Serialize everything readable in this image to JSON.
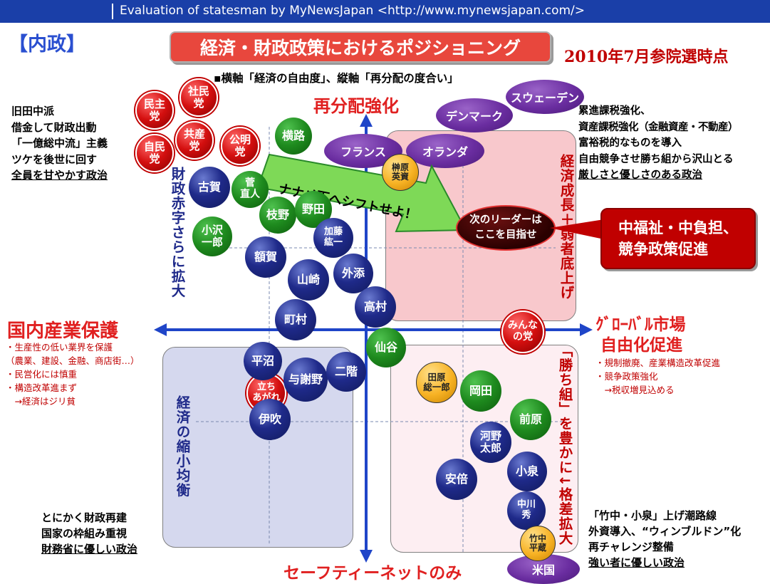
{
  "header": {
    "title": "Evaluation of statesman   by MyNewsJapan <http://www.mynewsjapan.com/>"
  },
  "section_label": "【内政】",
  "main_title": "経済・財政政策におけるポジショニング",
  "date_label": "2010年7月参院選時点",
  "axis_note": "▪横軸「経済の自由度」、縦軸「再分配の度合い」",
  "axes": {
    "top": "再分配強化",
    "bottom": "セーフティーネットのみ",
    "left": "国内産業保護",
    "right_line1": "ｸﾞﾛｰﾊﾞﾙ市場",
    "right_line2": "自由化促進"
  },
  "top_left_note": [
    "旧田中派",
    "借金して財政出動",
    "「一億総中流」主義",
    "ツケを後世に回す",
    "全員を甘やかす政治"
  ],
  "top_right_note": [
    "累進課税強化、",
    "資産課税強化（金融資産・不動産）",
    "富裕税的なものを導入",
    "自由競争させ勝ち組から沢山とる",
    "厳しさと優しさのある政治"
  ],
  "left_mid_note": [
    "・生産性の低い業界を保護",
    "（農業、建設、金融、商店街…）",
    "・民営化には慎重",
    "・構造改革進まず",
    "　→経済はジリ貧"
  ],
  "right_mid_note": [
    "・規制撤廃、産業構造改革促進",
    "・競争政策強化",
    "　→税収増見込める"
  ],
  "bottom_left_note": [
    "とにかく財政再建",
    "国家の枠組み重視",
    "財務省に優しい政治"
  ],
  "bottom_right_note": [
    "「竹中・小泉」上げ潮路線",
    "外資導入、“ウィンブルドン”化",
    "再チャレンジ整備",
    "強い者に優しい政治"
  ],
  "vertical_labels": {
    "deficit": "財政赤字さらに拡大",
    "growth": "経済成長＋弱者底上げ",
    "shrink": "経済の縮小均衡",
    "winners": "「勝ち組」を豊かに↓格差拡大"
  },
  "arrow_text": "ナナメ下へシフトせよ！",
  "target_label": "次のリーダーは\nここを目指せ",
  "target_callout": "中福祉・中負担、\n競争政策促進",
  "countries": [
    "スウェーデン",
    "デンマーク",
    "フランス",
    "オランダ",
    "米国"
  ],
  "parties": [
    "民主\n党",
    "社民\n党",
    "自民\n党",
    "共産\n党",
    "公明\n党",
    "立ち\nあがれ",
    "みんな\nの党"
  ],
  "politicians": {
    "yokomichi": "横路",
    "koga": "古賀",
    "kan": "菅\n直人",
    "edano": "枝野",
    "noda": "野田",
    "ozawa": "小沢\n一郎",
    "kato": "加藤\n紘一",
    "nukaga": "額賀",
    "yamasaki": "山崎",
    "sozoe": "外添",
    "takamura": "高村",
    "machimura": "町村",
    "sengoku": "仙谷",
    "sakakibara": "榊原\n英資",
    "hiranuma": "平沼",
    "yosano": "与謝野",
    "nikai": "二階",
    "ibuki": "伊吹",
    "tahara": "田原\n総一郎",
    "okada": "岡田",
    "maehara": "前原",
    "kono": "河野\n太郎",
    "abe": "安倍",
    "koizumi": "小泉",
    "nakagawa": "中川\n秀",
    "takenaka": "竹中\n平蔵"
  },
  "colors": {
    "header_bg": "#1a3fa8",
    "axis": "#1f45c8",
    "party_red": "#d40f0f",
    "navy": "#1f2a8a",
    "green": "#1e8a1e",
    "gold": "#f7b224",
    "purple": "#6a2da0",
    "arrow_green": "#7ed957"
  }
}
